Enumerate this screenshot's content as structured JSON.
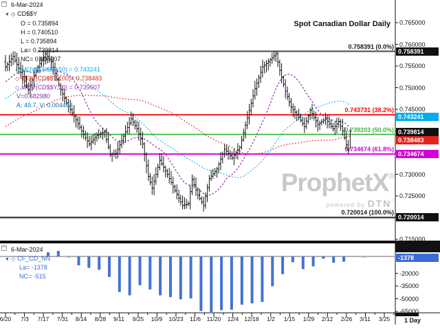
{
  "header": {
    "title": "Spot Canadian Dollar Daily",
    "period_label": "1 Day"
  },
  "main_panel": {
    "date_label": "6-Mar-2024",
    "symbol": "CD$$Y",
    "collapse_icon": "▼",
    "symbol_bullet": "◇",
    "quote_lines": [
      "O = 0.735894",
      "H = 0.740510",
      "L = 0.735894",
      "La= 0.739814",
      "NC= 0.004207"
    ],
    "indicator_lines": [
      {
        "bullet": "◇",
        "label": "MOV(CD$$Y,50) = 0.743241",
        "color": "#00aeef"
      },
      {
        "bullet": "◇",
        "label": "MOV(CD$$Y,100)= 0.738483",
        "color": "#e8231a"
      },
      {
        "bullet": "◇",
        "label": "MOV(CD$$Y,20) = 0.739607",
        "color": "#9b30b0"
      },
      {
        "bullet": "",
        "label": "V=0.682980",
        "color": "#7030a0"
      },
      {
        "bullet": "",
        "label": "A: 49.7, V: 0.004443",
        "color": "#0070c0"
      }
    ]
  },
  "y_axis": {
    "labels": [
      "0.765000",
      "0.760000",
      "0.755000",
      "0.750000",
      "0.745000",
      "0.740000",
      "0.735000",
      "0.730000",
      "0.725000",
      "0.720000",
      "0.715000"
    ],
    "max": 0.765,
    "step": 0.005
  },
  "x_axis": {
    "labels": [
      "6/20",
      "7/3",
      "7/17",
      "7/31",
      "8/14",
      "8/28",
      "9/11",
      "9/25",
      "10/9",
      "10/23",
      "11/6",
      "11/20",
      "12/4",
      "12/18",
      "1/2",
      "1/15",
      "1/29",
      "2/12",
      "2/26",
      "3/11",
      "3/25"
    ]
  },
  "fib_levels": [
    {
      "label": "0.758391 (0.0%)",
      "price": 0.758391,
      "color": "#6a6a6a",
      "text_color": "#1a1a1a",
      "x_start": 55,
      "width": 2.5
    },
    {
      "label": "0.743731 (38.2%)",
      "price": 0.743731,
      "color": "#ff0000",
      "text_color": "#ff0000",
      "x_start": 0,
      "width": 1.8
    },
    {
      "label": "0.739203 (50.0%)",
      "price": 0.739203,
      "color": "#3cb83c",
      "text_color": "#3cb83c",
      "x_start": 0,
      "width": 1.8
    },
    {
      "label": "0.734674 (61.8%)",
      "price": 0.734674,
      "color": "#d400d4",
      "text_color": "#d400d4",
      "x_start": 0,
      "width": 1.8
    },
    {
      "label": "0.720014 (100.0%)",
      "price": 0.720014,
      "color": "#333333",
      "text_color": "#1a1a1a",
      "x_start": 0,
      "width": 2.2
    }
  ],
  "price_badges": [
    {
      "text": "0.758391",
      "bg": "#111111",
      "price": 0.758391
    },
    {
      "text": "0.743241",
      "bg": "#00aeef",
      "price": 0.743241
    },
    {
      "text": "0.739814",
      "bg": "#111111",
      "price": 0.739814
    },
    {
      "text": "0.738483",
      "bg": "#e8231a",
      "price": 0.738483
    },
    {
      "text": "0.734674",
      "bg": "#d400d4",
      "price": 0.734674
    },
    {
      "text": "0.720014",
      "bg": "#111111",
      "price": 0.720014
    }
  ],
  "chart_data": {
    "type": "candlestick",
    "title": "Spot Canadian Dollar Daily",
    "period": "1 Day",
    "y_range": [
      0.715,
      0.765
    ],
    "price": {
      "days": 182,
      "close_waypoints": [
        [
          0,
          0.7548
        ],
        [
          4,
          0.7572
        ],
        [
          8,
          0.7535
        ],
        [
          12,
          0.7495
        ],
        [
          16,
          0.754
        ],
        [
          21,
          0.7578
        ],
        [
          24,
          0.756
        ],
        [
          28,
          0.7506
        ],
        [
          32,
          0.7465
        ],
        [
          36,
          0.7434
        ],
        [
          40,
          0.74
        ],
        [
          44,
          0.737
        ],
        [
          48,
          0.739
        ],
        [
          52,
          0.7398
        ],
        [
          55,
          0.7345
        ],
        [
          58,
          0.7348
        ],
        [
          62,
          0.7388
        ],
        [
          66,
          0.7428
        ],
        [
          69,
          0.7405
        ],
        [
          72,
          0.737
        ],
        [
          75,
          0.7295
        ],
        [
          77,
          0.7268
        ],
        [
          81,
          0.7332
        ],
        [
          85,
          0.73
        ],
        [
          89,
          0.7262
        ],
        [
          93,
          0.7228
        ],
        [
          96,
          0.7232
        ],
        [
          98,
          0.7288
        ],
        [
          101,
          0.7252
        ],
        [
          104,
          0.7228
        ],
        [
          107,
          0.729
        ],
        [
          111,
          0.7312
        ],
        [
          115,
          0.7358
        ],
        [
          119,
          0.7338
        ],
        [
          123,
          0.7362
        ],
        [
          127,
          0.743
        ],
        [
          131,
          0.7498
        ],
        [
          135,
          0.7548
        ],
        [
          138,
          0.756
        ],
        [
          142,
          0.7578
        ],
        [
          144,
          0.754
        ],
        [
          147,
          0.7492
        ],
        [
          150,
          0.7455
        ],
        [
          154,
          0.7432
        ],
        [
          157,
          0.741
        ],
        [
          160,
          0.7448
        ],
        [
          164,
          0.7415
        ],
        [
          168,
          0.7428
        ],
        [
          172,
          0.7405
        ],
        [
          175,
          0.7422
        ],
        [
          177,
          0.74
        ],
        [
          179,
          0.7368
        ],
        [
          180,
          0.7356
        ],
        [
          181,
          0.739814
        ]
      ],
      "last_candle": {
        "o": 0.735894,
        "h": 0.74051,
        "l": 0.735894,
        "c": 0.739814
      },
      "clamp_high": 0.758391,
      "clamp_low": 0.7208,
      "bar_color": "#111111",
      "moving_averages": [
        {
          "period": 100,
          "color": "#e8231a",
          "dash": "1.6,2.6",
          "last_value": 0.738483
        },
        {
          "period": 50,
          "color": "#00aeef",
          "dash": "1.6,2.6",
          "last_value": 0.743241
        },
        {
          "period": 20,
          "color": "#9b30b0",
          "dash": "2.6,2.4",
          "last_value": 0.739607
        }
      ]
    },
    "cot_bars": {
      "name": "CF_CD_NN",
      "values": [
        4800,
        6500,
        -1600,
        -10600,
        -13500,
        -15700,
        -24300,
        -42000,
        -46000,
        -34000,
        -39000,
        -46000,
        -48000,
        -50600,
        -49600,
        -64500,
        -65800,
        -63500,
        -63000,
        -57000,
        -55500,
        -53700,
        -35200,
        -20900,
        -6800,
        -15000,
        -11700,
        -2700,
        -7300,
        -6200,
        -863,
        -1378
      ],
      "color": "#4472d4",
      "small_color": "#8fb3e8",
      "y_ticks": [
        -20000,
        -35000,
        -50000,
        -65000
      ]
    }
  },
  "bottom_panel": {
    "date_label": "6-Mar-2024",
    "symbol": "CF_CD_NN",
    "collapse_icon": "▼",
    "symbol_bullet": "◇",
    "la_line": "La= -1378",
    "nc_line": "NC= -515",
    "text_color": "#3b6bd6",
    "badge": {
      "text": "-1378",
      "bg": "#3b6bd6"
    },
    "tick_labels": [
      "-20000",
      "-35000",
      "-50000",
      "-65000"
    ]
  },
  "watermark": {
    "brand": "ProphetX",
    "reg": "®",
    "powered_by": "powered by",
    "dtn": "DTN",
    "degree": "°"
  }
}
